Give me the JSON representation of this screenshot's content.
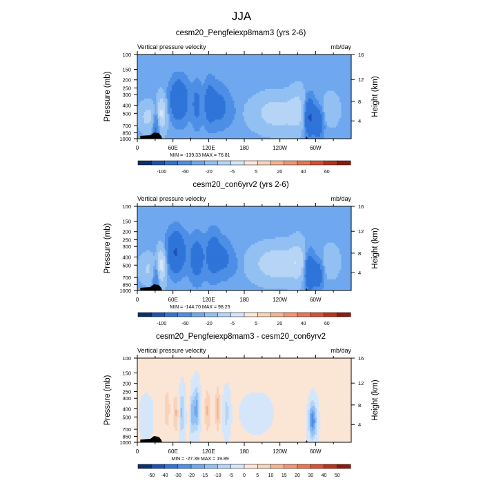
{
  "figure": {
    "title": "JJA"
  },
  "chart_data": [
    {
      "type": "heatmap",
      "title": "cesm20_Pengfeiexp8mam3 (yrs 2-6)",
      "left_label": "Vertical pressure velocity",
      "units": "mb/day",
      "ylabel": "Pressure (mb)",
      "ylabel_right": "Height (km)",
      "yticks": [
        "100",
        "150",
        "200",
        "250",
        "300",
        "400",
        "500",
        "700",
        "850",
        "1000"
      ],
      "yticks_right": [
        "16",
        "12",
        "8",
        "4"
      ],
      "xticks": [
        "0",
        "60E",
        "120E",
        "180",
        "120W",
        "60W"
      ],
      "stats": "MIN = -139.33  MAX =  76.81",
      "colorbar_labels": [
        "-100",
        "-60",
        "-20",
        "-5",
        "5",
        "20",
        "40",
        "60"
      ],
      "colorbar_colors": [
        "#08306b",
        "#1f4fb4",
        "#2f74d8",
        "#4d8ee6",
        "#6fa8ee",
        "#93c0f3",
        "#b6d5f6",
        "#d5e6fa",
        "#fbe6d6",
        "#f9d2b8",
        "#f5b394",
        "#f19473",
        "#ea7452",
        "#d9502d",
        "#b8331b",
        "#8c1a0e"
      ],
      "blobs": [
        {
          "lon": 18,
          "p": 550,
          "rx": 14,
          "ry": 0.35,
          "v": 25
        },
        {
          "lon": 32,
          "p": 650,
          "rx": 6,
          "ry": 0.5,
          "v": -40
        },
        {
          "lon": 40,
          "p": 500,
          "rx": 9,
          "ry": 0.45,
          "v": 45
        },
        {
          "lon": 70,
          "p": 350,
          "rx": 15,
          "ry": 0.55,
          "v": -60
        },
        {
          "lon": 100,
          "p": 400,
          "rx": 8,
          "ry": 0.6,
          "v": -30
        },
        {
          "lon": 122,
          "p": 380,
          "rx": 10,
          "ry": 0.6,
          "v": -40
        },
        {
          "lon": 140,
          "p": 420,
          "rx": 14,
          "ry": 0.55,
          "v": -30
        },
        {
          "lon": 160,
          "p": 480,
          "rx": 10,
          "ry": 0.4,
          "v": -8
        },
        {
          "lon": 235,
          "p": 500,
          "rx": 38,
          "ry": 0.45,
          "v": 30
        },
        {
          "lon": 270,
          "p": 450,
          "rx": 14,
          "ry": 0.55,
          "v": 20
        },
        {
          "lon": 290,
          "p": 550,
          "rx": 9,
          "ry": 0.5,
          "v": -70
        },
        {
          "lon": 305,
          "p": 650,
          "rx": 8,
          "ry": 0.4,
          "v": -50
        },
        {
          "lon": 325,
          "p": 450,
          "rx": 14,
          "ry": 0.4,
          "v": 15
        }
      ]
    },
    {
      "type": "heatmap",
      "title": "cesm20_con6yrv2 (yrs 2-6)",
      "left_label": "Vertical pressure velocity",
      "units": "mb/day",
      "ylabel": "Pressure (mb)",
      "ylabel_right": "Height (km)",
      "yticks": [
        "100",
        "150",
        "200",
        "250",
        "300",
        "400",
        "500",
        "700",
        "850",
        "1000"
      ],
      "yticks_right": [
        "16",
        "12",
        "8",
        "4"
      ],
      "xticks": [
        "0",
        "60E",
        "120E",
        "180",
        "120W",
        "60W"
      ],
      "stats": "MIN = -144.70  MAX =  98.25",
      "colorbar_labels": [
        "-100",
        "-60",
        "-20",
        "-5",
        "5",
        "20",
        "40",
        "60"
      ],
      "colorbar_colors": [
        "#08306b",
        "#1f4fb4",
        "#2f74d8",
        "#4d8ee6",
        "#6fa8ee",
        "#93c0f3",
        "#b6d5f6",
        "#d5e6fa",
        "#fbe6d6",
        "#f9d2b8",
        "#f5b394",
        "#f19473",
        "#ea7452",
        "#d9502d",
        "#b8331b",
        "#8c1a0e"
      ],
      "blobs": [
        {
          "lon": 18,
          "p": 550,
          "rx": 14,
          "ry": 0.35,
          "v": 20
        },
        {
          "lon": 32,
          "p": 650,
          "rx": 6,
          "ry": 0.5,
          "v": -35
        },
        {
          "lon": 40,
          "p": 500,
          "rx": 9,
          "ry": 0.45,
          "v": 50
        },
        {
          "lon": 65,
          "p": 350,
          "rx": 15,
          "ry": 0.55,
          "v": -65
        },
        {
          "lon": 100,
          "p": 420,
          "rx": 12,
          "ry": 0.6,
          "v": -40
        },
        {
          "lon": 128,
          "p": 380,
          "rx": 12,
          "ry": 0.6,
          "v": -45
        },
        {
          "lon": 148,
          "p": 420,
          "rx": 12,
          "ry": 0.5,
          "v": -25
        },
        {
          "lon": 165,
          "p": 500,
          "rx": 10,
          "ry": 0.4,
          "v": -8
        },
        {
          "lon": 235,
          "p": 480,
          "rx": 38,
          "ry": 0.45,
          "v": 35
        },
        {
          "lon": 270,
          "p": 450,
          "rx": 14,
          "ry": 0.55,
          "v": 22
        },
        {
          "lon": 290,
          "p": 600,
          "rx": 9,
          "ry": 0.5,
          "v": -60
        },
        {
          "lon": 305,
          "p": 650,
          "rx": 8,
          "ry": 0.4,
          "v": -40
        },
        {
          "lon": 325,
          "p": 450,
          "rx": 14,
          "ry": 0.4,
          "v": 15
        }
      ]
    },
    {
      "type": "heatmap",
      "title": "cesm20_Pengfeiexp8mam3 - cesm20_con6yrv2",
      "left_label": "Vertical pressure velocity",
      "units": "mb/day",
      "ylabel": "Pressure (mb)",
      "ylabel_right": "Height (km)",
      "yticks": [
        "100",
        "150",
        "200",
        "250",
        "300",
        "400",
        "500",
        "700",
        "850",
        "1000"
      ],
      "yticks_right": [
        "16",
        "12",
        "8",
        "4"
      ],
      "xticks": [
        "0",
        "60E",
        "120E",
        "180",
        "120W",
        "60W"
      ],
      "stats": "MIN = -27.39  MAX =  19.89",
      "colorbar_labels": [
        "-50",
        "-40",
        "-30",
        "-20",
        "-15",
        "-10",
        "-5",
        "0",
        "5",
        "10",
        "15",
        "20",
        "30",
        "40",
        "50"
      ],
      "colorbar_colors": [
        "#08306b",
        "#1f4fb4",
        "#2f74d8",
        "#4d8ee6",
        "#6fa8ee",
        "#93c0f3",
        "#b6d5f6",
        "#d5e6fa",
        "#fbe6d6",
        "#f9d2b8",
        "#f5b394",
        "#f19473",
        "#ea7452",
        "#d9502d",
        "#b8331b",
        "#8c1a0e"
      ],
      "blobs": [
        {
          "lon": 15,
          "p": 500,
          "rx": 10,
          "ry": 0.5,
          "v": -3
        },
        {
          "lon": 35,
          "p": 600,
          "rx": 5,
          "ry": 0.5,
          "v": 4
        },
        {
          "lon": 50,
          "p": 400,
          "rx": 5,
          "ry": 0.6,
          "v": 8
        },
        {
          "lon": 65,
          "p": 450,
          "rx": 5,
          "ry": 0.55,
          "v": 10
        },
        {
          "lon": 75,
          "p": 450,
          "rx": 5,
          "ry": 0.55,
          "v": -12
        },
        {
          "lon": 88,
          "p": 400,
          "rx": 4,
          "ry": 0.6,
          "v": 6
        },
        {
          "lon": 92,
          "p": 450,
          "rx": 5,
          "ry": 0.55,
          "v": -16
        },
        {
          "lon": 100,
          "p": 400,
          "rx": 4,
          "ry": 0.55,
          "v": -18
        },
        {
          "lon": 118,
          "p": 420,
          "rx": 5,
          "ry": 0.6,
          "v": 10
        },
        {
          "lon": 135,
          "p": 400,
          "rx": 4,
          "ry": 0.6,
          "v": 12
        },
        {
          "lon": 150,
          "p": 450,
          "rx": 5,
          "ry": 0.5,
          "v": -8
        },
        {
          "lon": 200,
          "p": 450,
          "rx": 25,
          "ry": 0.5,
          "v": -2
        },
        {
          "lon": 270,
          "p": 400,
          "rx": 14,
          "ry": 0.6,
          "v": 2
        },
        {
          "lon": 295,
          "p": 550,
          "rx": 6,
          "ry": 0.45,
          "v": -25
        },
        {
          "lon": 330,
          "p": 500,
          "rx": 12,
          "ry": 0.5,
          "v": 2
        }
      ]
    }
  ]
}
